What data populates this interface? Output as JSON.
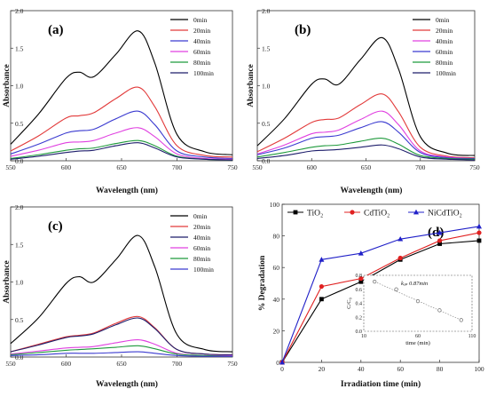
{
  "chart_data": [
    {
      "id": "a",
      "type": "line",
      "panel_label": "(a)",
      "xlabel": "Wavelength (nm)",
      "ylabel": "Absorbance",
      "xlim": [
        550,
        750
      ],
      "ylim": [
        0,
        2.0
      ],
      "xticks": [
        "550",
        "600",
        "650",
        "700",
        "750"
      ],
      "yticks": [
        "0.0",
        "0.5",
        "1.0",
        "1.5",
        "2.0"
      ],
      "legend": "top-right",
      "series": [
        {
          "name": "0min",
          "color": "#000000",
          "x": [
            550,
            575,
            600,
            612,
            625,
            645,
            665,
            680,
            700,
            725,
            750
          ],
          "y": [
            0.22,
            0.62,
            1.1,
            1.18,
            1.12,
            1.42,
            1.73,
            1.3,
            0.35,
            0.12,
            0.08
          ]
        },
        {
          "name": "20min",
          "color": "#e23a3a",
          "x": [
            550,
            575,
            600,
            612,
            625,
            645,
            665,
            680,
            700,
            725,
            750
          ],
          "y": [
            0.13,
            0.33,
            0.57,
            0.6,
            0.64,
            0.83,
            0.98,
            0.72,
            0.2,
            0.07,
            0.05
          ]
        },
        {
          "name": "40min",
          "color": "#3b3bd0",
          "x": [
            550,
            575,
            600,
            612,
            625,
            645,
            665,
            680,
            700,
            725,
            750
          ],
          "y": [
            0.09,
            0.22,
            0.37,
            0.4,
            0.42,
            0.56,
            0.66,
            0.48,
            0.13,
            0.05,
            0.03
          ]
        },
        {
          "name": "60min",
          "color": "#e040e0",
          "x": [
            550,
            575,
            600,
            612,
            625,
            645,
            665,
            680,
            700,
            725,
            750
          ],
          "y": [
            0.06,
            0.14,
            0.24,
            0.25,
            0.27,
            0.37,
            0.44,
            0.32,
            0.09,
            0.03,
            0.02
          ]
        },
        {
          "name": "80min",
          "color": "#1f9a3c",
          "x": [
            550,
            575,
            600,
            612,
            625,
            645,
            665,
            680,
            700,
            725,
            750
          ],
          "y": [
            0.03,
            0.08,
            0.14,
            0.16,
            0.17,
            0.23,
            0.27,
            0.2,
            0.06,
            0.02,
            0.01
          ]
        },
        {
          "name": "100min",
          "color": "#1d1d6b",
          "x": [
            550,
            575,
            600,
            612,
            625,
            645,
            665,
            680,
            700,
            725,
            750
          ],
          "y": [
            0.02,
            0.06,
            0.11,
            0.13,
            0.14,
            0.2,
            0.24,
            0.17,
            0.05,
            0.02,
            0.01
          ]
        }
      ]
    },
    {
      "id": "b",
      "type": "line",
      "panel_label": "(b)",
      "xlabel": "Wavelength (nm)",
      "ylabel": "Absorbance",
      "xlim": [
        550,
        750
      ],
      "ylim": [
        0,
        2.0
      ],
      "xticks": [
        "550",
        "600",
        "650",
        "700",
        "750"
      ],
      "yticks": [
        "0.0",
        "0.5",
        "1.0",
        "1.5",
        "2.0"
      ],
      "legend": "top-right",
      "series": [
        {
          "name": "0min",
          "color": "#000000",
          "x": [
            550,
            575,
            600,
            612,
            625,
            645,
            665,
            680,
            700,
            725,
            750
          ],
          "y": [
            0.2,
            0.56,
            1.02,
            1.09,
            1.02,
            1.35,
            1.64,
            1.22,
            0.32,
            0.1,
            0.07
          ]
        },
        {
          "name": "20min",
          "color": "#e23a3a",
          "x": [
            550,
            575,
            600,
            612,
            625,
            645,
            665,
            680,
            700,
            725,
            750
          ],
          "y": [
            0.12,
            0.3,
            0.51,
            0.55,
            0.57,
            0.75,
            0.89,
            0.65,
            0.18,
            0.06,
            0.04
          ]
        },
        {
          "name": "40min",
          "color": "#e040e0",
          "x": [
            550,
            575,
            600,
            612,
            625,
            645,
            665,
            680,
            700,
            725,
            750
          ],
          "y": [
            0.09,
            0.21,
            0.36,
            0.38,
            0.41,
            0.55,
            0.66,
            0.48,
            0.13,
            0.05,
            0.03
          ]
        },
        {
          "name": "60min",
          "color": "#3b3bd0",
          "x": [
            550,
            575,
            600,
            612,
            625,
            645,
            665,
            680,
            700,
            725,
            750
          ],
          "y": [
            0.08,
            0.17,
            0.3,
            0.32,
            0.34,
            0.44,
            0.52,
            0.38,
            0.11,
            0.04,
            0.03
          ]
        },
        {
          "name": "80min",
          "color": "#1f9a3c",
          "x": [
            550,
            575,
            600,
            612,
            625,
            645,
            665,
            680,
            700,
            725,
            750
          ],
          "y": [
            0.05,
            0.11,
            0.18,
            0.2,
            0.21,
            0.26,
            0.3,
            0.22,
            0.07,
            0.03,
            0.02
          ]
        },
        {
          "name": "100min",
          "color": "#1d1d6b",
          "x": [
            550,
            575,
            600,
            612,
            625,
            645,
            665,
            680,
            700,
            725,
            750
          ],
          "y": [
            0.03,
            0.07,
            0.13,
            0.14,
            0.15,
            0.18,
            0.21,
            0.16,
            0.05,
            0.02,
            0.01
          ]
        }
      ]
    },
    {
      "id": "c",
      "type": "line",
      "panel_label": "(c)",
      "xlabel": "Wavelength (nm)",
      "ylabel": "Absorbance",
      "xlim": [
        550,
        750
      ],
      "ylim": [
        0,
        2.0
      ],
      "xticks": [
        "550",
        "600",
        "650",
        "700",
        "750"
      ],
      "yticks": [
        "0.0",
        "0.5",
        "1.0",
        "1.5",
        "2.0"
      ],
      "legend": "top-right",
      "series": [
        {
          "name": "0min",
          "color": "#000000",
          "x": [
            550,
            575,
            600,
            612,
            625,
            645,
            665,
            680,
            700,
            725,
            750
          ],
          "y": [
            0.18,
            0.52,
            0.98,
            1.07,
            1.0,
            1.3,
            1.62,
            1.2,
            0.3,
            0.1,
            0.07
          ]
        },
        {
          "name": "20min",
          "color": "#e23a3a",
          "x": [
            550,
            575,
            600,
            612,
            625,
            645,
            665,
            680,
            700,
            725,
            750
          ],
          "y": [
            0.07,
            0.17,
            0.27,
            0.29,
            0.32,
            0.45,
            0.54,
            0.39,
            0.1,
            0.04,
            0.03
          ]
        },
        {
          "name": "40min",
          "color": "#1d1d6b",
          "x": [
            550,
            575,
            600,
            612,
            625,
            645,
            665,
            680,
            700,
            725,
            750
          ],
          "y": [
            0.07,
            0.16,
            0.26,
            0.28,
            0.31,
            0.43,
            0.52,
            0.38,
            0.1,
            0.04,
            0.03
          ]
        },
        {
          "name": "60min",
          "color": "#e040e0",
          "x": [
            550,
            575,
            600,
            612,
            625,
            645,
            665,
            680,
            700,
            725,
            750
          ],
          "y": [
            0.04,
            0.08,
            0.12,
            0.13,
            0.14,
            0.19,
            0.23,
            0.17,
            0.05,
            0.02,
            0.02
          ]
        },
        {
          "name": "80min",
          "color": "#1f9a3c",
          "x": [
            550,
            575,
            600,
            612,
            625,
            645,
            665,
            680,
            700,
            725,
            750
          ],
          "y": [
            0.03,
            0.06,
            0.09,
            0.1,
            0.11,
            0.13,
            0.15,
            0.11,
            0.04,
            0.02,
            0.01
          ]
        },
        {
          "name": "100min",
          "color": "#3b3bd0",
          "x": [
            550,
            575,
            600,
            612,
            625,
            645,
            665,
            680,
            700,
            725,
            750
          ],
          "y": [
            0.02,
            0.03,
            0.05,
            0.05,
            0.05,
            0.06,
            0.07,
            0.05,
            0.02,
            0.01,
            0.01
          ]
        }
      ]
    },
    {
      "id": "d",
      "type": "line",
      "panel_label": "(d)",
      "xlabel": "Irradiation time (min)",
      "ylabel": "% Degradation",
      "xlim": [
        0,
        100
      ],
      "ylim": [
        0,
        100
      ],
      "xticks": [
        "0",
        "20",
        "40",
        "60",
        "80",
        "100"
      ],
      "yticks": [
        "0",
        "20",
        "40",
        "60",
        "80",
        "100"
      ],
      "legend": "top",
      "series": [
        {
          "name": "TiO₂",
          "color": "#000000",
          "marker": "square",
          "x": [
            0,
            20,
            40,
            60,
            80,
            100
          ],
          "y": [
            0,
            40,
            51,
            65,
            75,
            77
          ]
        },
        {
          "name": "CdTiO₂",
          "color": "#e02020",
          "marker": "circle",
          "x": [
            0,
            20,
            40,
            60,
            80,
            100
          ],
          "y": [
            0,
            48,
            53,
            66,
            77,
            82
          ]
        },
        {
          "name": "NiCdTiO₂",
          "color": "#2020c8",
          "marker": "triangle",
          "x": [
            0,
            20,
            40,
            60,
            80,
            100
          ],
          "y": [
            0,
            65,
            69,
            78,
            82,
            86
          ]
        }
      ],
      "inset": {
        "type": "scatter",
        "xlabel": "time (min)",
        "ylabel": "C/C₀",
        "xlim": [
          10,
          110
        ],
        "ylim": [
          0.0,
          0.8
        ],
        "xticks": [
          "10",
          "60",
          "110"
        ],
        "yticks": [
          "0.0",
          "0.2",
          "0.4",
          "0.6",
          "0.8"
        ],
        "annotation": "kₐₚ 0.87min",
        "x": [
          20,
          40,
          60,
          80,
          100
        ],
        "y": [
          0.71,
          0.6,
          0.43,
          0.3,
          0.16
        ]
      }
    }
  ]
}
